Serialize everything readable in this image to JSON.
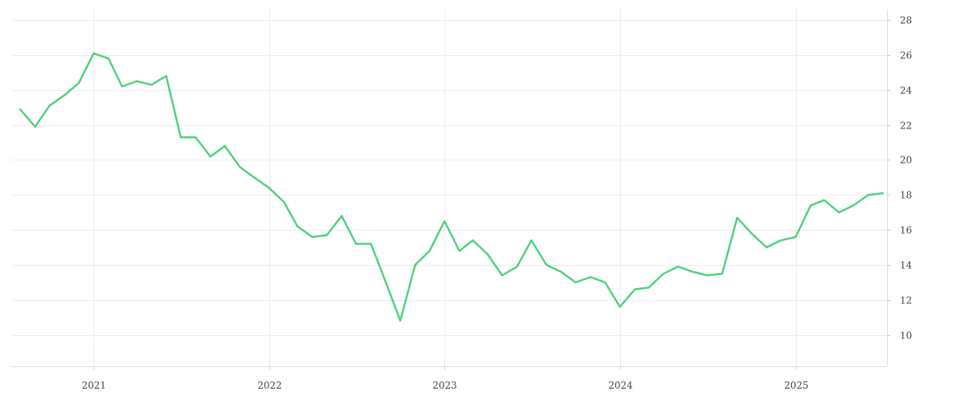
{
  "chart_data": {
    "type": "line",
    "title": "",
    "xlabel": "",
    "ylabel": "",
    "xlim": [
      "2020-07-15",
      "2025-07-10"
    ],
    "ylim": [
      8.2,
      28.6
    ],
    "x_ticks": [
      {
        "label": "2021",
        "date": "2021-01-01"
      },
      {
        "label": "2022",
        "date": "2022-01-01"
      },
      {
        "label": "2023",
        "date": "2023-01-01"
      },
      {
        "label": "2024",
        "date": "2024-01-01"
      },
      {
        "label": "2025",
        "date": "2025-01-01"
      }
    ],
    "y_ticks": [
      10,
      12,
      14,
      16,
      18,
      20,
      22,
      24,
      26,
      28
    ],
    "y_axis_position": "right",
    "grid": true,
    "line_color": "#4cd17a",
    "series": [
      {
        "x": [
          "2020-08-01",
          "2020-09-01",
          "2020-10-01",
          "2020-11-01",
          "2020-12-01",
          "2021-01-01",
          "2021-02-01",
          "2021-03-01",
          "2021-04-01",
          "2021-05-01",
          "2021-06-01",
          "2021-07-01",
          "2021-08-01",
          "2021-09-01",
          "2021-10-01",
          "2021-11-01",
          "2021-12-01",
          "2022-01-01",
          "2022-02-01",
          "2022-03-01",
          "2022-04-01",
          "2022-05-01",
          "2022-06-01",
          "2022-07-01",
          "2022-08-01",
          "2022-09-01",
          "2022-10-01",
          "2022-11-01",
          "2022-12-01",
          "2023-01-01",
          "2023-02-01",
          "2023-03-01",
          "2023-04-01",
          "2023-05-01",
          "2023-06-01",
          "2023-07-01",
          "2023-08-01",
          "2023-09-01",
          "2023-10-01",
          "2023-11-01",
          "2023-12-01",
          "2024-01-01",
          "2024-02-01",
          "2024-03-01",
          "2024-04-01",
          "2024-05-01",
          "2024-06-01",
          "2024-07-01",
          "2024-08-01",
          "2024-09-01",
          "2024-10-01",
          "2024-11-01",
          "2024-12-01",
          "2025-01-01",
          "2025-02-01",
          "2025-03-01",
          "2025-04-01",
          "2025-05-01",
          "2025-06-01",
          "2025-07-01"
        ],
        "values": [
          22.9,
          21.9,
          23.1,
          23.7,
          24.4,
          26.1,
          25.8,
          24.2,
          24.5,
          24.3,
          24.8,
          21.3,
          21.3,
          20.2,
          20.8,
          19.6,
          19.0,
          18.4,
          17.6,
          16.2,
          15.6,
          15.7,
          16.8,
          15.2,
          15.2,
          13.0,
          10.8,
          14.0,
          14.8,
          16.5,
          14.8,
          15.4,
          14.6,
          13.4,
          13.9,
          15.4,
          14.0,
          13.6,
          13.0,
          13.3,
          13.0,
          11.6,
          12.6,
          12.7,
          13.5,
          13.9,
          13.6,
          13.4,
          13.5,
          16.7,
          15.8,
          15.0,
          15.4,
          15.6,
          17.4,
          17.7,
          17.0,
          17.4,
          18.0,
          18.1
        ]
      }
    ]
  }
}
